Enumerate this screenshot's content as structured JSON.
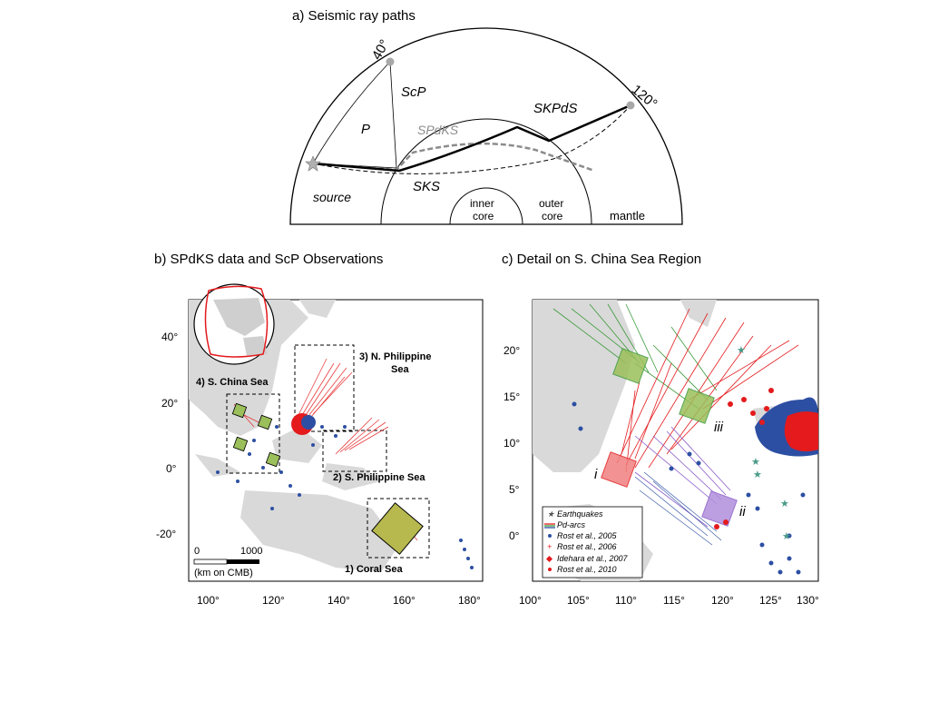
{
  "panel_a": {
    "title": "a) Seismic ray paths",
    "deg_40": "40°",
    "deg_120": "120°",
    "labels": {
      "P": "P",
      "ScP": "ScP",
      "SPdKS": "SPdKS",
      "SKPdS": "SKPdS",
      "SKS": "SKS",
      "source": "source",
      "inner_core_1": "inner",
      "inner_core_2": "core",
      "outer_core_1": "outer",
      "outer_core_2": "core",
      "mantle": "mantle"
    }
  },
  "panel_b": {
    "title": "b) SPdKS data and ScP Observations",
    "y_ticks": [
      "40°",
      "20°",
      "0°",
      "-20°"
    ],
    "x_ticks": [
      "100°",
      "120°",
      "140°",
      "160°",
      "180°"
    ],
    "regions": {
      "r1": "1) Coral Sea",
      "r2": "2) S. Philippine Sea",
      "r3a": "3) N. Philippine",
      "r3b": "Sea",
      "r4": "4) S. China Sea"
    },
    "scale": {
      "zero": "0",
      "max": "1000",
      "unit": "(km on CMB)"
    }
  },
  "panel_c": {
    "title": "c) Detail on S. China Sea Region",
    "y_ticks": [
      "20°",
      "15°",
      "10°",
      "5°",
      "0°"
    ],
    "x_ticks": [
      "100°",
      "105°",
      "110°",
      "115°",
      "120°",
      "125°",
      "130°"
    ],
    "box_labels": {
      "i": "i",
      "ii": "ii",
      "iii": "iii"
    },
    "legend": [
      "Earthquakes",
      "Pd-arcs",
      "Rost et al., 2005",
      "Rost et al., 2006",
      "Idehara et al., 2007",
      "Rost et al., 2010"
    ]
  },
  "colors": {
    "red": "#e41a1c",
    "green": "#3a9a3a",
    "purple": "#8a5cc8",
    "blue": "#2d4fa3",
    "land": "#d9d9d9",
    "box_green": "#9bbf5a"
  }
}
